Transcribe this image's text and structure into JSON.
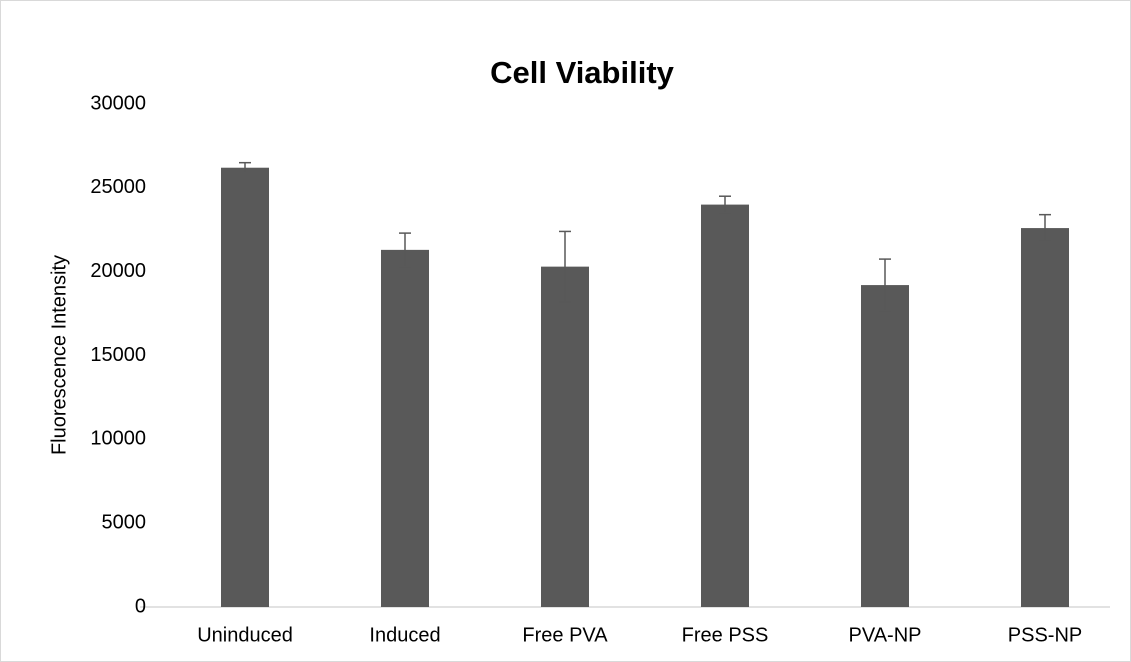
{
  "chart_data": {
    "type": "bar",
    "title": "Cell Viability",
    "ylabel": "Fluorescence Intensity",
    "categories": [
      "Uninduced",
      "Induced",
      "Free PVA",
      "Free PSS",
      "PVA-NP",
      "PSS-NP"
    ],
    "values": [
      26200,
      21300,
      20300,
      24000,
      19200,
      22600
    ],
    "errors": [
      300,
      1000,
      2100,
      500,
      1550,
      800
    ],
    "color": "#595959",
    "ylim": [
      0,
      30000
    ],
    "yticks": [
      0,
      5000,
      10000,
      15000,
      20000,
      25000,
      30000
    ],
    "grid": false
  }
}
